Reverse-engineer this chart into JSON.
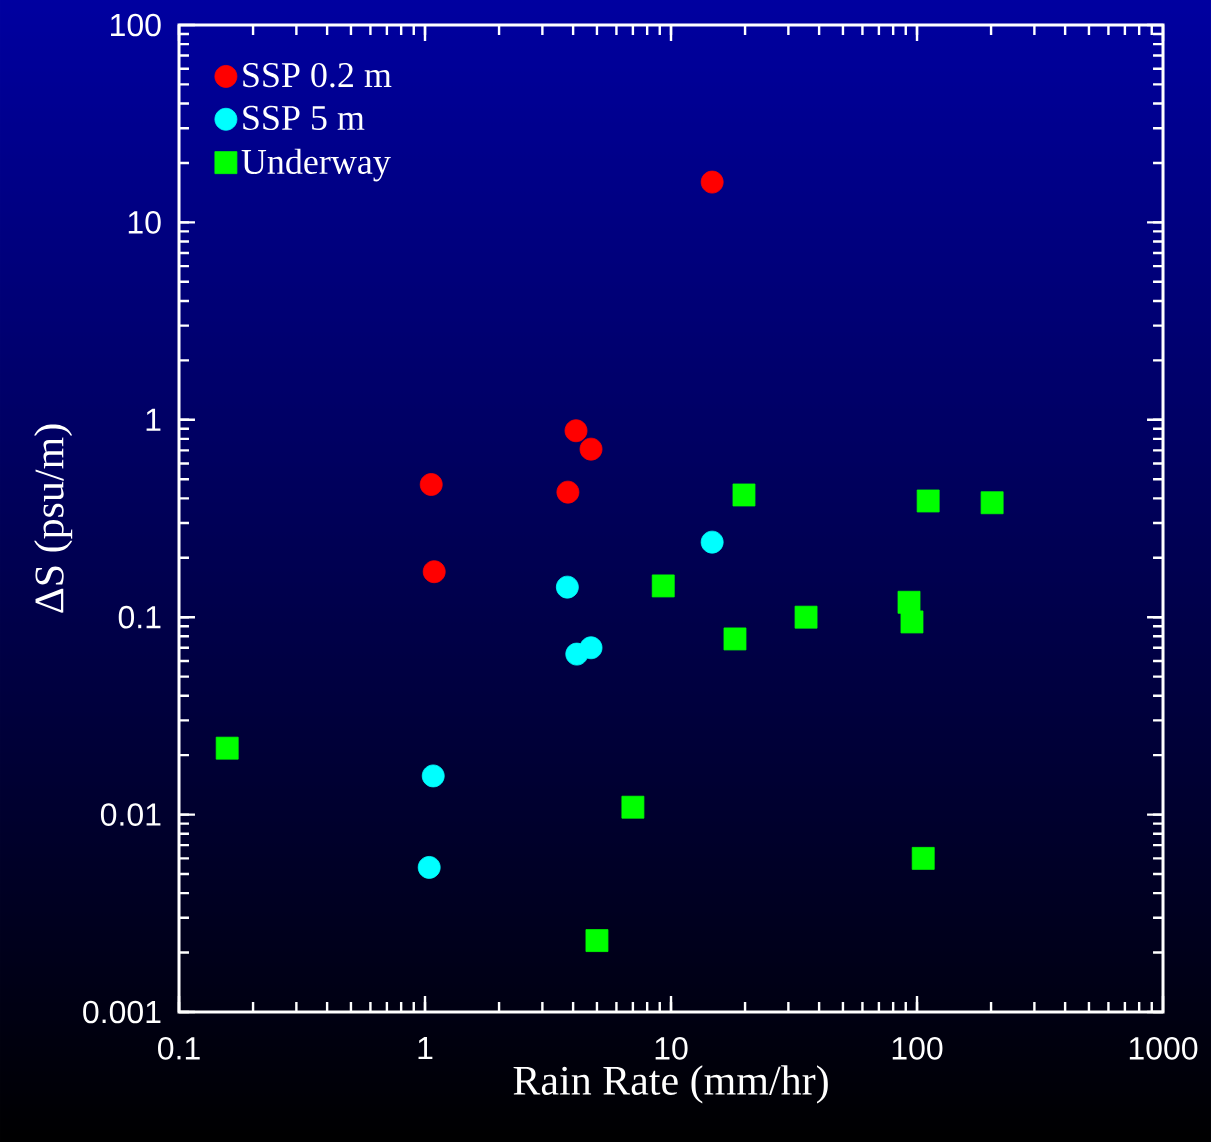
{
  "chart_data": {
    "type": "scatter",
    "xlabel": "Rain Rate (mm/hr)",
    "ylabel": "ΔS (psu/m)",
    "log": "xy",
    "grid": false,
    "legend": "top left",
    "xlim": [
      0.1,
      1000
    ],
    "ylim": [
      0.001,
      100
    ],
    "xticks": [
      0.1,
      1,
      10,
      100,
      1000
    ],
    "yticks": [
      0.001,
      0.01,
      0.1,
      1,
      10,
      100
    ],
    "series": [
      {
        "name": "SSP 0.2 m",
        "color": "#ff0000",
        "marker": "circle",
        "x": [
          14.7,
          4.11,
          4.73,
          1.06,
          3.81,
          1.09
        ],
        "values": [
          16.0,
          0.88,
          0.71,
          0.47,
          0.43,
          0.17
        ]
      },
      {
        "name": "SSP 5 m",
        "color": "#00ffff",
        "marker": "circle",
        "x": [
          14.7,
          3.79,
          4.14,
          4.73,
          1.08,
          1.04
        ],
        "values": [
          0.24,
          0.142,
          0.065,
          0.07,
          0.0157,
          0.0054
        ]
      },
      {
        "name": "Underway",
        "color": "#00ff00",
        "marker": "square",
        "x": [
          0.157,
          19.8,
          111,
          202,
          9.3,
          35.4,
          92.8,
          95.4,
          18.2,
          7.0,
          106,
          5.0
        ],
        "values": [
          0.0217,
          0.416,
          0.388,
          0.38,
          0.144,
          0.1,
          0.119,
          0.0946,
          0.0776,
          0.0109,
          0.006,
          0.0023
        ]
      }
    ]
  }
}
